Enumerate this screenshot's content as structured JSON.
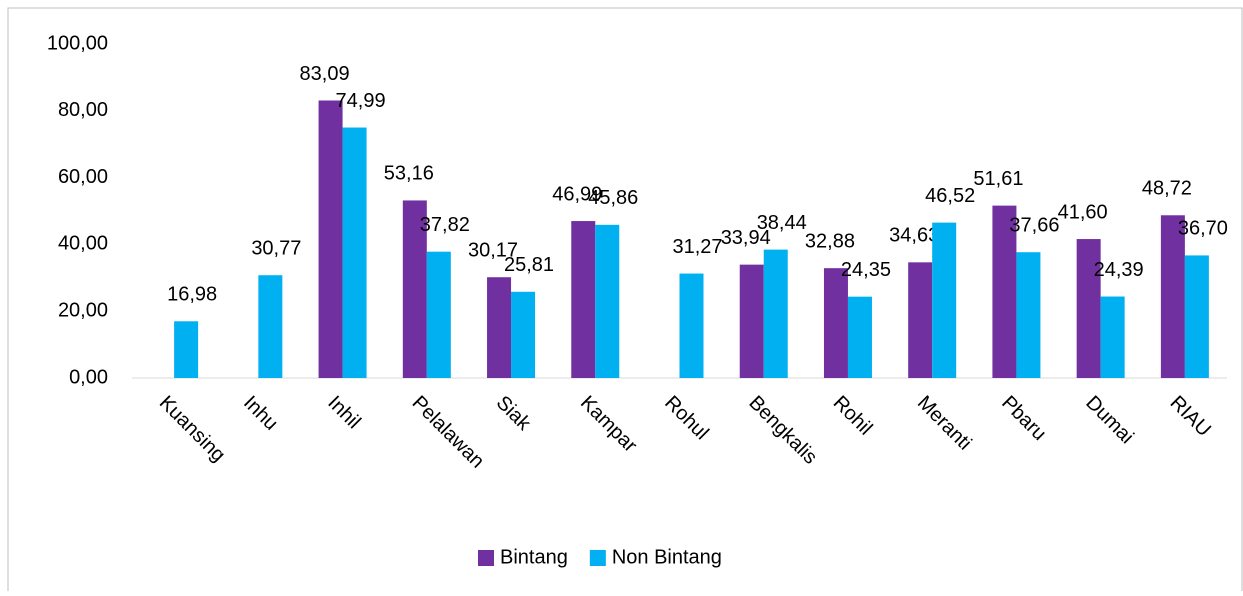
{
  "chart_data": {
    "type": "bar",
    "categories": [
      "Kuansing",
      "Inhu",
      "Inhil",
      "Pelalawan",
      "Siak",
      "Kampar",
      "Rohul",
      "Bengkalis",
      "Rohil",
      "Meranti",
      "Pbaru",
      "Dumai",
      "RIAU"
    ],
    "series": [
      {
        "name": "Bintang",
        "color": "#7030a0",
        "values": [
          null,
          null,
          83.09,
          53.16,
          30.17,
          46.99,
          null,
          33.94,
          32.88,
          34.63,
          51.61,
          41.6,
          48.72
        ],
        "value_labels": [
          null,
          null,
          "83,09",
          "53,16",
          "30,17",
          "46,99",
          null,
          "33,94",
          "32,88",
          "34,63",
          "51,61",
          "41,60",
          "48,72"
        ]
      },
      {
        "name": "Non Bintang",
        "color": "#00b0f0",
        "values": [
          16.98,
          30.77,
          74.99,
          37.82,
          25.81,
          45.86,
          31.27,
          38.44,
          24.35,
          46.52,
          37.66,
          24.39,
          36.7
        ],
        "value_labels": [
          "16,98",
          "30,77",
          "74,99",
          "37,82",
          "25,81",
          "45,86",
          "31,27",
          "38,44",
          "24,35",
          "46,52",
          "37,66",
          "24,39",
          "36,70"
        ]
      }
    ],
    "ylim": [
      0,
      100
    ],
    "yticks": [
      {
        "value": 0,
        "label": "0,00"
      },
      {
        "value": 20,
        "label": "20,00"
      },
      {
        "value": 40,
        "label": "40,00"
      },
      {
        "value": 60,
        "label": "60,00"
      },
      {
        "value": 80,
        "label": "80,00"
      },
      {
        "value": 100,
        "label": "100,00"
      }
    ],
    "grid": false,
    "legend": "bottom"
  }
}
